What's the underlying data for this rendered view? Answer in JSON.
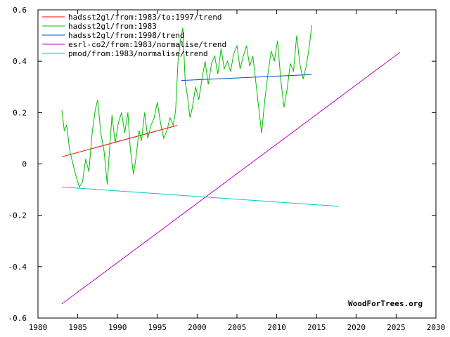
{
  "chart_data": {
    "type": "line",
    "title": "",
    "xlabel": "",
    "ylabel": "",
    "xlim": [
      1980,
      2030
    ],
    "ylim": [
      -0.6,
      0.6
    ],
    "x_ticks": [
      1980,
      1985,
      1990,
      1995,
      2000,
      2005,
      2010,
      2015,
      2020,
      2025,
      2030
    ],
    "y_ticks": [
      -0.6,
      -0.4,
      -0.2,
      0,
      0.2,
      0.4,
      0.6
    ],
    "y_tick_labels": [
      "-0.6",
      "-0.4",
      "-0.2",
      "0",
      "0.2",
      "0.4",
      "0.6"
    ],
    "grid": false,
    "legend_position": "top-left",
    "watermark": "WoodForTrees.org",
    "series": [
      {
        "name": "hadsst2gl/from:1983/to:1997/trend",
        "color": "#ff0000",
        "kind": "line",
        "x": [
          1983.0,
          1997.5
        ],
        "y": [
          0.028,
          0.15
        ]
      },
      {
        "name": "hadsst2gl/from:1983",
        "color": "#00c000",
        "kind": "line",
        "x": [
          1983.0,
          1983.3,
          1983.6,
          1984.0,
          1984.4,
          1984.8,
          1985.2,
          1985.6,
          1986.0,
          1986.4,
          1986.8,
          1987.2,
          1987.5,
          1987.9,
          1988.3,
          1988.7,
          1989.0,
          1989.3,
          1989.7,
          1990.1,
          1990.5,
          1990.9,
          1991.3,
          1991.6,
          1992.0,
          1992.3,
          1992.7,
          1993.0,
          1993.4,
          1993.8,
          1994.2,
          1994.6,
          1995.0,
          1995.4,
          1995.8,
          1996.2,
          1996.6,
          1997.0,
          1997.3,
          1997.6,
          1997.9,
          1998.2,
          1998.5,
          1998.8,
          1999.1,
          1999.4,
          1999.8,
          2000.2,
          2000.6,
          2001.0,
          2001.4,
          2001.8,
          2002.2,
          2002.6,
          2003.0,
          2003.4,
          2003.8,
          2004.2,
          2004.6,
          2005.0,
          2005.4,
          2005.8,
          2006.2,
          2006.6,
          2007.0,
          2007.4,
          2007.8,
          2008.1,
          2008.5,
          2008.9,
          2009.3,
          2009.7,
          2010.1,
          2010.5,
          2010.9,
          2011.3,
          2011.7,
          2012.1,
          2012.5,
          2012.9,
          2013.3,
          2013.7,
          2014.1,
          2014.4
        ],
        "y": [
          0.21,
          0.13,
          0.15,
          0.05,
          0.0,
          -0.05,
          -0.09,
          -0.07,
          0.02,
          -0.03,
          0.12,
          0.21,
          0.25,
          0.12,
          0.05,
          -0.08,
          0.06,
          0.19,
          0.08,
          0.16,
          0.2,
          0.12,
          0.2,
          0.06,
          -0.04,
          0.02,
          0.13,
          0.09,
          0.2,
          0.1,
          0.15,
          0.18,
          0.24,
          0.16,
          0.1,
          0.13,
          0.18,
          0.15,
          0.21,
          0.4,
          0.48,
          0.53,
          0.32,
          0.26,
          0.18,
          0.22,
          0.3,
          0.25,
          0.33,
          0.4,
          0.31,
          0.39,
          0.42,
          0.35,
          0.45,
          0.37,
          0.4,
          0.36,
          0.43,
          0.46,
          0.37,
          0.42,
          0.46,
          0.38,
          0.42,
          0.31,
          0.2,
          0.12,
          0.25,
          0.35,
          0.44,
          0.4,
          0.48,
          0.33,
          0.22,
          0.29,
          0.39,
          0.36,
          0.5,
          0.39,
          0.33,
          0.38,
          0.46,
          0.54
        ]
      },
      {
        "name": "hadsst2gl/from:1998/trend",
        "color": "#0050c8",
        "kind": "line",
        "x": [
          1998.0,
          2014.4
        ],
        "y": [
          0.325,
          0.348
        ]
      },
      {
        "name": "esrl-co2/from:1983/normalise/trend",
        "color": "#c000c0",
        "kind": "line",
        "x": [
          1983.0,
          2025.5
        ],
        "y": [
          -0.545,
          0.435
        ]
      },
      {
        "name": "pmod/from:1983/normalise/trend",
        "color": "#00c8c8",
        "kind": "line",
        "x": [
          1983.0,
          2017.8
        ],
        "y": [
          -0.09,
          -0.165
        ]
      }
    ]
  }
}
